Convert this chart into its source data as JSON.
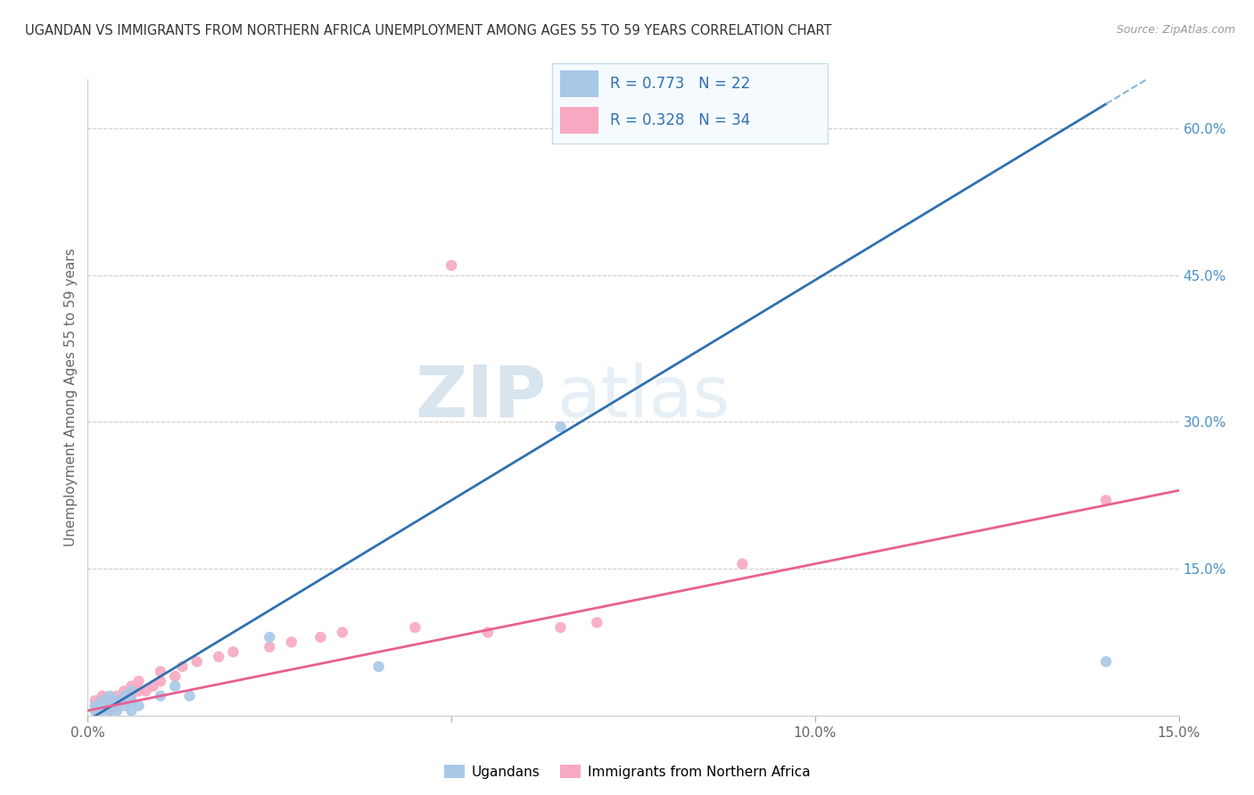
{
  "title": "UGANDAN VS IMMIGRANTS FROM NORTHERN AFRICA UNEMPLOYMENT AMONG AGES 55 TO 59 YEARS CORRELATION CHART",
  "source": "Source: ZipAtlas.com",
  "ylabel": "Unemployment Among Ages 55 to 59 years",
  "xlim": [
    0.0,
    0.15
  ],
  "ylim": [
    0.0,
    0.65
  ],
  "xticks": [
    0.0,
    0.05,
    0.1,
    0.15
  ],
  "xtick_labels": [
    "0.0%",
    "",
    "10.0%",
    "15.0%"
  ],
  "ytick_positions": [
    0.0,
    0.15,
    0.3,
    0.45,
    0.6
  ],
  "ytick_labels": [
    "",
    "15.0%",
    "30.0%",
    "45.0%",
    "60.0%"
  ],
  "ugandan_color": "#a8c8e8",
  "northern_africa_color": "#f8a8c0",
  "regression_line_color_blue": "#3070b0",
  "regression_line_dashed_color": "#88b8d8",
  "regression_line_color_pink": "#e86090",
  "ugandan_R": "0.773",
  "ugandan_N": "22",
  "northern_africa_R": "0.328",
  "northern_africa_N": "34",
  "ugandan_points_x": [
    0.001,
    0.001,
    0.002,
    0.002,
    0.003,
    0.003,
    0.003,
    0.004,
    0.004,
    0.005,
    0.005,
    0.006,
    0.006,
    0.006,
    0.007,
    0.01,
    0.012,
    0.014,
    0.025,
    0.04,
    0.065,
    0.14
  ],
  "ugandan_points_y": [
    0.005,
    0.01,
    0.005,
    0.015,
    0.005,
    0.01,
    0.02,
    0.005,
    0.015,
    0.01,
    0.02,
    0.005,
    0.015,
    0.025,
    0.01,
    0.02,
    0.03,
    0.02,
    0.08,
    0.05,
    0.295,
    0.055
  ],
  "northern_africa_points_x": [
    0.001,
    0.001,
    0.002,
    0.002,
    0.003,
    0.003,
    0.004,
    0.004,
    0.005,
    0.005,
    0.006,
    0.006,
    0.007,
    0.007,
    0.008,
    0.009,
    0.01,
    0.01,
    0.012,
    0.013,
    0.015,
    0.018,
    0.02,
    0.025,
    0.028,
    0.032,
    0.035,
    0.045,
    0.05,
    0.055,
    0.065,
    0.07,
    0.09,
    0.14
  ],
  "northern_africa_points_y": [
    0.005,
    0.015,
    0.01,
    0.02,
    0.005,
    0.015,
    0.01,
    0.02,
    0.015,
    0.025,
    0.02,
    0.03,
    0.025,
    0.035,
    0.025,
    0.03,
    0.035,
    0.045,
    0.04,
    0.05,
    0.055,
    0.06,
    0.065,
    0.07,
    0.075,
    0.08,
    0.085,
    0.09,
    0.46,
    0.085,
    0.09,
    0.095,
    0.155,
    0.22
  ],
  "watermark_zip": "ZIP",
  "watermark_atlas": "atlas",
  "watermark_color": "#d0e4f0",
  "background_color": "#ffffff",
  "grid_color": "#cccccc"
}
